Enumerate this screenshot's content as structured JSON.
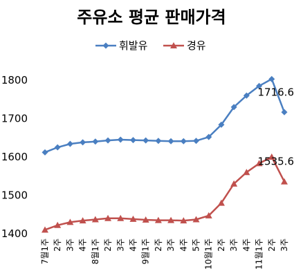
{
  "chart_data": {
    "type": "line",
    "title": "주유소 평균 판매가격",
    "categories": [
      "7월1주",
      "2주",
      "3주",
      "4주",
      "8월1주",
      "2주",
      "3주",
      "4주",
      "9월1주",
      "2주",
      "3주",
      "4주",
      "5주",
      "10월1주",
      "2주",
      "3주",
      "4주",
      "11월1주",
      "2주",
      "3주"
    ],
    "series": [
      {
        "name": "휘발유",
        "color": "#4a7fc1",
        "marker": "diamond",
        "values": [
          1612,
          1625,
          1634,
          1638,
          1640,
          1643,
          1645,
          1644,
          1643,
          1642,
          1641,
          1641,
          1642,
          1652,
          1684,
          1730,
          1760,
          1785,
          1803,
          1716.6
        ]
      },
      {
        "name": "경유",
        "color": "#c0504d",
        "marker": "triangle",
        "values": [
          1410,
          1422,
          1430,
          1434,
          1437,
          1440,
          1440,
          1438,
          1436,
          1435,
          1435,
          1434,
          1437,
          1447,
          1480,
          1530,
          1560,
          1583,
          1600,
          1535.6
        ]
      }
    ],
    "ylim": [
      1400,
      1800
    ],
    "yticks": [
      1400,
      1500,
      1600,
      1700,
      1800
    ],
    "grid": false,
    "legend": "top"
  }
}
